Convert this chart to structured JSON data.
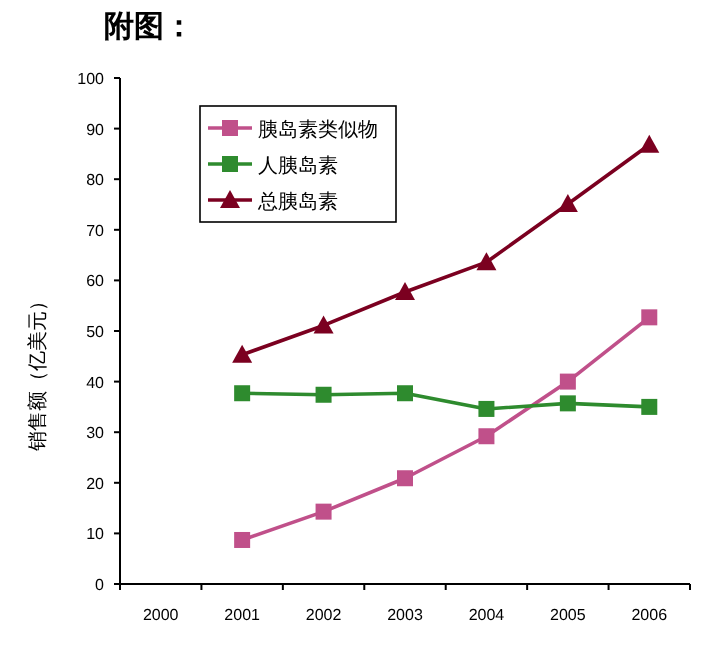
{
  "chart_data": {
    "type": "line",
    "title": "附图：",
    "ylabel": "销售额（亿美元）",
    "categories": [
      "2000",
      "2001",
      "2002",
      "2003",
      "2004",
      "2005",
      "2006"
    ],
    "series": [
      {
        "name": "胰岛素类似物",
        "color": "#c0508a",
        "marker": "square",
        "values": [
          null,
          8.7,
          14.3,
          20.9,
          29.2,
          40.0,
          52.7
        ]
      },
      {
        "name": "人胰岛素",
        "color": "#2e8b2e",
        "marker": "square",
        "values": [
          null,
          37.7,
          37.4,
          37.7,
          34.6,
          35.7,
          35.0
        ]
      },
      {
        "name": "总胰岛素",
        "color": "#7b0020",
        "marker": "triangle",
        "values": [
          null,
          45.3,
          51.1,
          57.7,
          63.6,
          75.1,
          86.8
        ]
      }
    ],
    "ylim": [
      0,
      100
    ],
    "yticks": [
      0,
      10,
      20,
      30,
      40,
      50,
      60,
      70,
      80,
      90,
      100
    ],
    "grid": false,
    "legend": "top left"
  }
}
